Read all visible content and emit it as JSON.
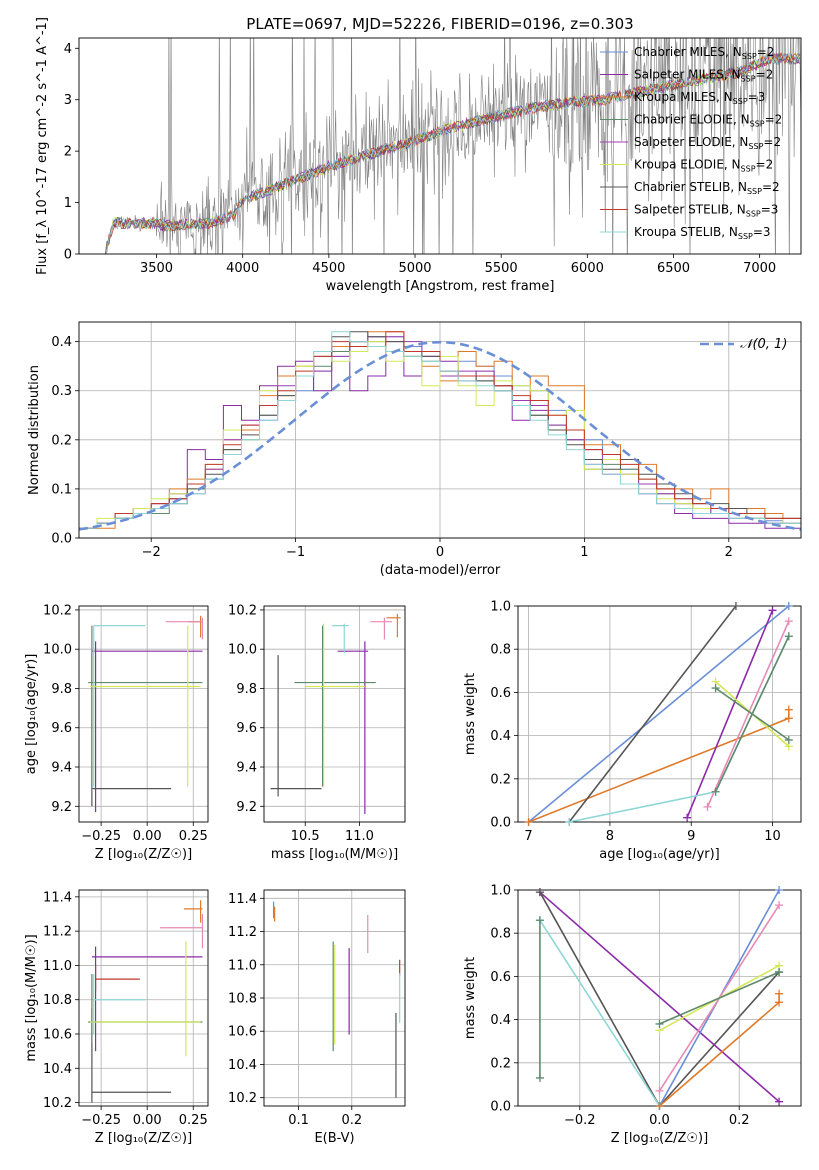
{
  "figure": {
    "title": "PLATE=0697, MJD=52226, FIBERID=0196, z=0.303"
  },
  "colors": {
    "chabrier_miles": "#6a8fd6",
    "salpeter_miles": "#8b2aa8",
    "kroupa_miles": "#e07a2a",
    "chabrier_elodie": "#5d8a6b",
    "salpeter_elodie": "#9b3cb0",
    "kroupa_elodie": "#d4e85a",
    "chabrier_stelib": "#555555",
    "salpeter_stelib": "#c0392b",
    "kroupa_stelib": "#8fd6d6",
    "pink": "#e88ab5",
    "data_gray": "#808080",
    "normal": "#6a8fd6"
  },
  "chart_data": [
    {
      "id": "spectrum",
      "type": "line",
      "xlabel": "wavelength [Angstrom, rest frame]",
      "ylabel": "Flux [f_λ 10^-17 erg cm^-2 s^-1 A^-1]",
      "xlim": [
        3050,
        7240
      ],
      "ylim": [
        0,
        4.2
      ],
      "xticks": [
        3500,
        4000,
        4500,
        5000,
        5500,
        6000,
        6500,
        7000
      ],
      "yticks": [
        0,
        1,
        2,
        3,
        4
      ],
      "grid": false,
      "legend_position": "top-right",
      "legend": [
        {
          "imf": "Chabrier",
          "lib": "MILES",
          "nssp": "2",
          "color": "chabrier_miles"
        },
        {
          "imf": "Salpeter",
          "lib": "MILES",
          "nssp": "2",
          "color": "salpeter_miles"
        },
        {
          "imf": "Kroupa",
          "lib": "MILES",
          "nssp": "3",
          "color": "kroupa_miles"
        },
        {
          "imf": "Chabrier",
          "lib": "ELODIE",
          "nssp": "2",
          "color": "chabrier_elodie"
        },
        {
          "imf": "Salpeter",
          "lib": "ELODIE",
          "nssp": "2",
          "color": "salpeter_elodie"
        },
        {
          "imf": "Kroupa",
          "lib": "ELODIE",
          "nssp": "2",
          "color": "kroupa_elodie"
        },
        {
          "imf": "Chabrier",
          "lib": "STELIB",
          "nssp": "2",
          "color": "chabrier_stelib"
        },
        {
          "imf": "Salpeter",
          "lib": "STELIB",
          "nssp": "3",
          "color": "salpeter_stelib"
        },
        {
          "imf": "Kroupa",
          "lib": "STELIB",
          "nssp": "3",
          "color": "kroupa_stelib"
        }
      ],
      "continuum": {
        "x": [
          3200,
          3250,
          3500,
          3550,
          3700,
          3800,
          3950,
          4000,
          4200,
          4500,
          4700,
          5000,
          5200,
          5500,
          5700,
          5900,
          6100,
          6300,
          6600,
          6900,
          7050
        ],
        "y": [
          0.0,
          0.6,
          0.6,
          0.55,
          0.58,
          0.6,
          0.75,
          1.05,
          1.3,
          1.7,
          1.9,
          2.2,
          2.45,
          2.7,
          2.85,
          2.95,
          3.0,
          3.15,
          3.35,
          3.55,
          3.8
        ]
      }
    },
    {
      "id": "residuals",
      "type": "line",
      "xlabel": "(data-model)/error",
      "ylabel": "Normed distribution",
      "xlim": [
        -2.5,
        2.5
      ],
      "ylim": [
        0,
        0.44
      ],
      "xticks": [
        -2,
        -1,
        0,
        1,
        2
      ],
      "yticks": [
        0.0,
        0.1,
        0.2,
        0.3,
        0.4
      ],
      "grid": true,
      "legend_position": "top-right",
      "legend_label": "𝒩(0, 1)",
      "series": [
        {
          "color": "chabrier_miles",
          "values": [
            0.02,
            0.03,
            0.04,
            0.05,
            0.06,
            0.07,
            0.09,
            0.12,
            0.17,
            0.2,
            0.24,
            0.29,
            0.3,
            0.34,
            0.37,
            0.39,
            0.41,
            0.41,
            0.39,
            0.38,
            0.33,
            0.36,
            0.35,
            0.33,
            0.31,
            0.3,
            0.26,
            0.22,
            0.2,
            0.17,
            0.14,
            0.12,
            0.1,
            0.08,
            0.07,
            0.06,
            0.05,
            0.04,
            0.035,
            0.03
          ]
        },
        {
          "color": "salpeter_miles",
          "values": [
            0.02,
            0.03,
            0.04,
            0.05,
            0.07,
            0.09,
            0.18,
            0.16,
            0.27,
            0.24,
            0.31,
            0.35,
            0.36,
            0.3,
            0.39,
            0.3,
            0.33,
            0.4,
            0.33,
            0.37,
            0.36,
            0.32,
            0.34,
            0.3,
            0.24,
            0.26,
            0.22,
            0.2,
            0.15,
            0.13,
            0.11,
            0.09,
            0.07,
            0.05,
            0.04,
            0.04,
            0.03,
            0.03,
            0.02,
            0.02
          ]
        },
        {
          "color": "kroupa_miles",
          "values": [
            0.02,
            0.02,
            0.04,
            0.06,
            0.06,
            0.1,
            0.12,
            0.14,
            0.2,
            0.22,
            0.29,
            0.33,
            0.35,
            0.38,
            0.39,
            0.4,
            0.42,
            0.42,
            0.37,
            0.35,
            0.32,
            0.38,
            0.35,
            0.36,
            0.28,
            0.33,
            0.31,
            0.31,
            0.19,
            0.19,
            0.16,
            0.15,
            0.1,
            0.1,
            0.08,
            0.1,
            0.06,
            0.06,
            0.05,
            0.04
          ]
        },
        {
          "color": "chabrier_elodie",
          "values": [
            0.02,
            0.03,
            0.04,
            0.05,
            0.05,
            0.08,
            0.1,
            0.12,
            0.18,
            0.2,
            0.25,
            0.28,
            0.33,
            0.35,
            0.38,
            0.4,
            0.4,
            0.38,
            0.37,
            0.36,
            0.34,
            0.33,
            0.32,
            0.3,
            0.28,
            0.25,
            0.23,
            0.2,
            0.14,
            0.15,
            0.14,
            0.11,
            0.09,
            0.07,
            0.06,
            0.05,
            0.04,
            0.04,
            0.03,
            0.03
          ]
        },
        {
          "color": "salpeter_elodie",
          "values": [
            0.02,
            0.03,
            0.05,
            0.06,
            0.07,
            0.08,
            0.11,
            0.14,
            0.2,
            0.23,
            0.27,
            0.31,
            0.33,
            0.34,
            0.37,
            0.4,
            0.41,
            0.41,
            0.4,
            0.37,
            0.33,
            0.34,
            0.33,
            0.31,
            0.28,
            0.27,
            0.23,
            0.2,
            0.18,
            0.16,
            0.13,
            0.11,
            0.09,
            0.07,
            0.06,
            0.05,
            0.04,
            0.04,
            0.03,
            0.03
          ]
        },
        {
          "color": "kroupa_elodie",
          "values": [
            0.02,
            0.04,
            0.04,
            0.06,
            0.08,
            0.09,
            0.1,
            0.15,
            0.22,
            0.2,
            0.3,
            0.29,
            0.35,
            0.38,
            0.36,
            0.38,
            0.4,
            0.36,
            0.38,
            0.31,
            0.37,
            0.31,
            0.27,
            0.32,
            0.31,
            0.3,
            0.25,
            0.26,
            0.14,
            0.16,
            0.13,
            0.12,
            0.08,
            0.07,
            0.06,
            0.06,
            0.05,
            0.04,
            0.04,
            0.03
          ]
        },
        {
          "color": "chabrier_stelib",
          "values": [
            0.02,
            0.03,
            0.04,
            0.05,
            0.06,
            0.07,
            0.1,
            0.13,
            0.18,
            0.21,
            0.25,
            0.29,
            0.33,
            0.37,
            0.41,
            0.42,
            0.41,
            0.4,
            0.38,
            0.37,
            0.34,
            0.33,
            0.32,
            0.31,
            0.27,
            0.25,
            0.22,
            0.19,
            0.16,
            0.14,
            0.16,
            0.13,
            0.11,
            0.09,
            0.07,
            0.07,
            0.06,
            0.05,
            0.04,
            0.04
          ]
        },
        {
          "color": "salpeter_stelib",
          "values": [
            0.02,
            0.03,
            0.05,
            0.05,
            0.07,
            0.08,
            0.11,
            0.15,
            0.19,
            0.23,
            0.27,
            0.3,
            0.34,
            0.37,
            0.4,
            0.39,
            0.39,
            0.42,
            0.38,
            0.38,
            0.34,
            0.33,
            0.33,
            0.31,
            0.29,
            0.28,
            0.25,
            0.22,
            0.18,
            0.17,
            0.15,
            0.12,
            0.1,
            0.08,
            0.07,
            0.06,
            0.05,
            0.05,
            0.04,
            0.04
          ]
        },
        {
          "color": "kroupa_stelib",
          "values": [
            0.02,
            0.03,
            0.04,
            0.05,
            0.06,
            0.07,
            0.09,
            0.12,
            0.17,
            0.2,
            0.24,
            0.28,
            0.33,
            0.38,
            0.42,
            0.4,
            0.39,
            0.38,
            0.37,
            0.36,
            0.34,
            0.32,
            0.31,
            0.3,
            0.27,
            0.24,
            0.21,
            0.18,
            0.15,
            0.13,
            0.11,
            0.09,
            0.07,
            0.06,
            0.05,
            0.05,
            0.04,
            0.04,
            0.03,
            0.03
          ]
        }
      ]
    },
    {
      "id": "z-age",
      "type": "scatter",
      "xlabel": "Z [log₁₀(Z/Z☉)]",
      "ylabel": "age  [log₁₀(age/yr)]",
      "xlim": [
        -0.37,
        0.33
      ],
      "ylim": [
        9.12,
        10.22
      ],
      "xticks": [
        -0.25,
        0.0,
        0.25
      ],
      "yticks": [
        9.2,
        9.4,
        9.6,
        9.8,
        10.0,
        10.2
      ],
      "grid": true
    },
    {
      "id": "mass-age",
      "type": "scatter",
      "xlabel": "mass [log₁₀(M/M☉)]",
      "ylabel": "",
      "xlim": [
        10.12,
        11.42
      ],
      "ylim": [
        9.12,
        10.22
      ],
      "xticks": [
        10.5,
        11.0
      ],
      "yticks": [
        9.2,
        9.4,
        9.6,
        9.8,
        10.0,
        10.2
      ],
      "grid": true
    },
    {
      "id": "age-weight",
      "type": "line",
      "xlabel": "age  [log₁₀(age/yr)]",
      "ylabel": "mass weight",
      "xlim": [
        6.87,
        10.35
      ],
      "ylim": [
        0.0,
        1.0
      ],
      "xticks": [
        7,
        8,
        9,
        10
      ],
      "yticks": [
        0.0,
        0.2,
        0.4,
        0.6,
        0.8,
        1.0
      ],
      "grid": true,
      "series": [
        {
          "color": "chabrier_miles",
          "x": [
            7.0,
            10.2
          ],
          "y": [
            0.0,
            1.0
          ]
        },
        {
          "color": "kroupa_miles",
          "x": [
            7.0,
            10.2,
            10.2
          ],
          "y": [
            0.0,
            0.48,
            0.52
          ]
        },
        {
          "color": "chabrier_stelib",
          "x": [
            7.5,
            9.55
          ],
          "y": [
            0.0,
            1.0
          ]
        },
        {
          "color": "salpeter_miles",
          "x": [
            8.95,
            10.0
          ],
          "y": [
            0.02,
            0.98
          ]
        },
        {
          "color": "pink",
          "x": [
            9.2,
            10.2
          ],
          "y": [
            0.07,
            0.93
          ]
        },
        {
          "color": "kroupa_elodie",
          "x": [
            9.3,
            10.2
          ],
          "y": [
            0.65,
            0.35
          ]
        },
        {
          "color": "chabrier_elodie",
          "x": [
            9.3,
            10.2
          ],
          "y": [
            0.62,
            0.38
          ]
        },
        {
          "color": "kroupa_stelib",
          "x": [
            7.5,
            9.3,
            10.2
          ],
          "y": [
            0.0,
            0.14,
            0.86
          ]
        },
        {
          "color": "chabrier_elodie",
          "x": [
            9.3,
            10.2
          ],
          "y": [
            0.14,
            0.86
          ]
        }
      ]
    },
    {
      "id": "z-mass",
      "type": "scatter",
      "xlabel": "Z [log₁₀(Z/Z☉)]",
      "ylabel": "mass [log₁₀(M/M☉)]",
      "xlim": [
        -0.37,
        0.33
      ],
      "ylim": [
        10.18,
        11.44
      ],
      "xticks": [
        -0.25,
        0.0,
        0.25
      ],
      "yticks": [
        10.2,
        10.4,
        10.6,
        10.8,
        11.0,
        11.2,
        11.4
      ],
      "grid": true
    },
    {
      "id": "ebv-mass",
      "type": "scatter",
      "xlabel": "E(B-V)",
      "ylabel": "",
      "xlim": [
        0.035,
        0.3
      ],
      "ylim": [
        10.15,
        11.45
      ],
      "xticks": [
        0.1,
        0.2
      ],
      "yticks": [
        10.2,
        10.4,
        10.6,
        10.8,
        11.0,
        11.2,
        11.4
      ],
      "grid": true
    },
    {
      "id": "z-weight",
      "type": "line",
      "xlabel": "Z [log₁₀(Z/Z☉)]",
      "ylabel": "mass weight",
      "xlim": [
        -0.355,
        0.355
      ],
      "ylim": [
        0.0,
        1.0
      ],
      "xticks": [
        -0.2,
        0.0,
        0.2
      ],
      "yticks": [
        0.0,
        0.2,
        0.4,
        0.6,
        0.8,
        1.0
      ],
      "grid": true,
      "series": [
        {
          "color": "salpeter_miles",
          "x": [
            -0.3,
            0.3
          ],
          "y": [
            0.99,
            0.02
          ]
        },
        {
          "color": "chabrier_stelib",
          "x": [
            -0.3,
            0.0,
            0.3
          ],
          "y": [
            0.99,
            0.0,
            0.62
          ]
        },
        {
          "color": "kroupa_stelib",
          "x": [
            -0.3,
            0.0
          ],
          "y": [
            0.86,
            0.0
          ]
        },
        {
          "color": "chabrier_elodie",
          "x": [
            -0.3,
            -0.3
          ],
          "y": [
            0.13,
            0.86
          ]
        },
        {
          "color": "chabrier_miles",
          "x": [
            0.0,
            0.3
          ],
          "y": [
            0.0,
            1.0
          ]
        },
        {
          "color": "pink",
          "x": [
            0.0,
            0.3
          ],
          "y": [
            0.07,
            0.93
          ]
        },
        {
          "color": "kroupa_miles",
          "x": [
            0.0,
            0.3,
            0.3
          ],
          "y": [
            0.0,
            0.48,
            0.52
          ]
        },
        {
          "color": "kroupa_elodie",
          "x": [
            0.0,
            0.3
          ],
          "y": [
            0.35,
            0.65
          ]
        },
        {
          "color": "chabrier_elodie",
          "x": [
            0.0,
            0.3
          ],
          "y": [
            0.38,
            0.62
          ]
        }
      ]
    }
  ]
}
